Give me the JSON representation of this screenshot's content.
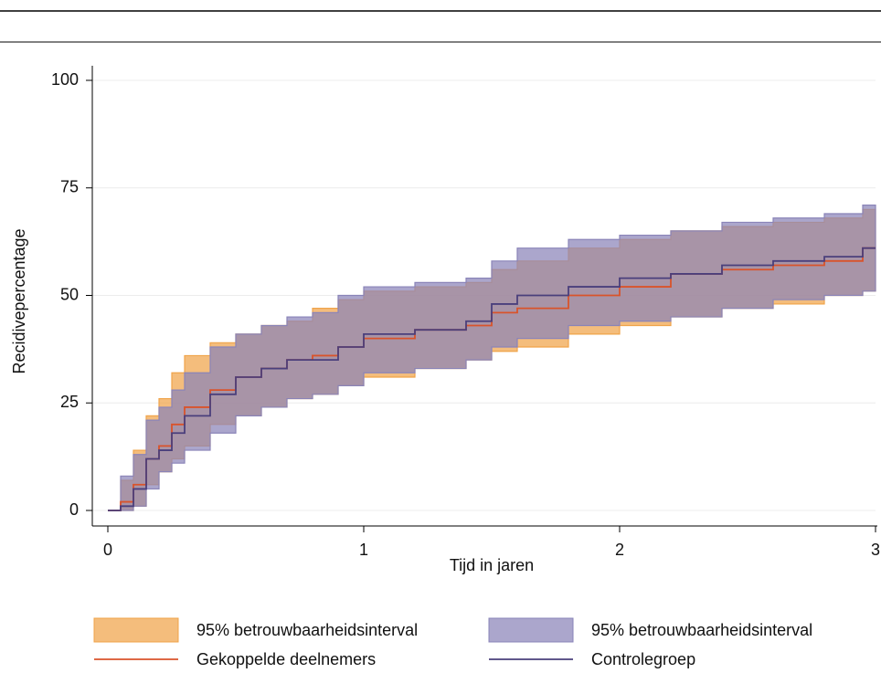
{
  "chart_data": {
    "type": "step",
    "x_label": "Tijd in jaren",
    "y_label": "Recidivepercentage",
    "xlim": [
      0,
      3
    ],
    "xticks": [
      0,
      1,
      2,
      3
    ],
    "ylim": [
      0,
      100
    ],
    "yticks": [
      0,
      25,
      50,
      75,
      100
    ],
    "grid": true,
    "legend": "bottom",
    "x": [
      0,
      0.05,
      0.1,
      0.15,
      0.2,
      0.25,
      0.3,
      0.4,
      0.5,
      0.6,
      0.7,
      0.8,
      0.9,
      1.0,
      1.2,
      1.4,
      1.5,
      1.6,
      1.8,
      2.0,
      2.2,
      2.4,
      2.6,
      2.8,
      2.95,
      3.0
    ],
    "series": [
      {
        "name": "95% betrouwbaarheidsinterval",
        "color": "#f0a44a",
        "lower": [
          0,
          0,
          1,
          6,
          9,
          12,
          15,
          20,
          22,
          24,
          26,
          27,
          29,
          31,
          33,
          35,
          37,
          38,
          41,
          43,
          45,
          47,
          48,
          50,
          51,
          52
        ],
        "upper": [
          0,
          7,
          14,
          22,
          26,
          32,
          36,
          39,
          41,
          43,
          44,
          47,
          49,
          51,
          52,
          53,
          56,
          58,
          61,
          63,
          65,
          66,
          67,
          68,
          70,
          70
        ]
      },
      {
        "name": "95% betrouwbaarheidsinterval",
        "color": "#8a84b8",
        "lower": [
          0,
          0,
          1,
          5,
          9,
          11,
          14,
          18,
          22,
          24,
          26,
          27,
          29,
          32,
          33,
          35,
          38,
          40,
          43,
          44,
          45,
          47,
          49,
          50,
          51,
          52
        ],
        "upper": [
          0,
          8,
          13,
          21,
          24,
          28,
          32,
          38,
          41,
          43,
          45,
          46,
          50,
          52,
          53,
          54,
          58,
          61,
          63,
          64,
          65,
          67,
          68,
          69,
          71,
          71
        ]
      },
      {
        "name": "Gekoppelde deelnemers",
        "color": "#d9532b",
        "values": [
          0,
          2,
          6,
          12,
          15,
          20,
          24,
          28,
          31,
          33,
          35,
          36,
          38,
          40,
          42,
          43,
          46,
          47,
          50,
          52,
          55,
          56,
          57,
          58,
          61,
          61
        ]
      },
      {
        "name": "Controlegroep",
        "color": "#4a3f7c",
        "values": [
          0,
          1,
          5,
          12,
          14,
          18,
          22,
          27,
          31,
          33,
          35,
          35,
          38,
          41,
          42,
          44,
          48,
          50,
          52,
          54,
          55,
          57,
          58,
          59,
          61,
          61
        ]
      }
    ]
  }
}
